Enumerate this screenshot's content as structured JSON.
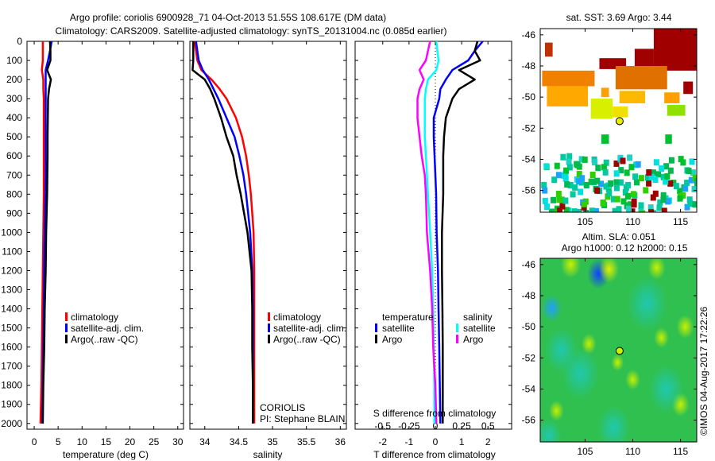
{
  "title": {
    "line1": "Argo profile: coriolis 6900928_71 04-Oct-2013 51.55S 108.617E (DM data)",
    "line2": "Climatology: CARS2009. Satellite-adjusted climatology: synTS_20131004.nc (0.085d earlier)"
  },
  "credit": "©IMOS 04-Aug-2017 17:22:26",
  "colors": {
    "climatology": "#ff0000",
    "satellite": "#0000ff",
    "argo": "#000000",
    "sal_satellite": "#00ffff",
    "sal_argo": "#ff00ff"
  },
  "chart_data": [
    {
      "type": "line",
      "id": "temperature",
      "xlabel": "temperature (deg C)",
      "ylabel": "",
      "xlim": [
        -1.5,
        31.2
      ],
      "ylim": [
        2030,
        0
      ],
      "xticks": [
        "0",
        "5",
        "10",
        "15",
        "20",
        "25",
        "30"
      ],
      "xtick_values": [
        0,
        5,
        10,
        15,
        20,
        25,
        30
      ],
      "yticks": [
        "0",
        "100",
        "200",
        "300",
        "400",
        "500",
        "600",
        "700",
        "800",
        "900",
        "1000",
        "1100",
        "1200",
        "1300",
        "1400",
        "1500",
        "1600",
        "1700",
        "1800",
        "1900",
        "2000"
      ],
      "ytick_values": [
        0,
        100,
        200,
        300,
        400,
        500,
        600,
        700,
        800,
        900,
        1000,
        1100,
        1200,
        1300,
        1400,
        1500,
        1600,
        1700,
        1800,
        1900,
        2000
      ],
      "depth": [
        0,
        50,
        100,
        150,
        200,
        250,
        300,
        400,
        500,
        600,
        700,
        800,
        1000,
        1200,
        1400,
        1600,
        1800,
        2000
      ],
      "series": [
        {
          "name": "climatology",
          "color": "#ff0000",
          "values": [
            1.8,
            1.8,
            1.8,
            1.6,
            1.9,
            1.9,
            2.0,
            2.0,
            2.0,
            2.0,
            2.0,
            2.0,
            1.9,
            1.8,
            1.7,
            1.6,
            1.5,
            1.3
          ]
        },
        {
          "name": "satellite-adj. clim.",
          "color": "#0000ff",
          "values": [
            3.65,
            3.3,
            2.9,
            2.4,
            2.4,
            2.4,
            2.4,
            2.4,
            2.4,
            2.4,
            2.4,
            2.35,
            2.2,
            2.1,
            2.0,
            1.9,
            1.8,
            1.7
          ]
        },
        {
          "name": "Argo(..raw -QC)",
          "color": "#000000",
          "values": [
            3.3,
            3.4,
            3.4,
            2.7,
            3.5,
            3.1,
            2.9,
            2.85,
            2.8,
            2.8,
            2.75,
            2.7,
            2.5,
            2.4,
            2.2,
            2.1,
            1.9,
            1.8
          ]
        }
      ],
      "legend": [
        "climatology",
        "satellite-adj. clim.",
        "Argo(..raw -QC)"
      ]
    },
    {
      "type": "line",
      "id": "salinity",
      "xlabel": "salinity",
      "xlim": [
        33.78,
        36.09
      ],
      "ylim": [
        2030,
        0
      ],
      "xticks": [
        "34",
        "34.5",
        "35",
        "35.5",
        "36"
      ],
      "xtick_values": [
        34,
        34.5,
        35,
        35.5,
        36
      ],
      "depth": [
        0,
        50,
        100,
        150,
        200,
        250,
        300,
        400,
        500,
        600,
        700,
        800,
        1000,
        1200,
        1400,
        1600,
        1800,
        2000
      ],
      "series": [
        {
          "name": "climatology",
          "color": "#ff0000",
          "values": [
            33.85,
            33.87,
            33.89,
            33.95,
            34.1,
            34.22,
            34.32,
            34.46,
            34.55,
            34.61,
            34.65,
            34.68,
            34.72,
            34.73,
            34.73,
            34.73,
            34.73,
            34.73
          ]
        },
        {
          "name": "satellite-adj. clim.",
          "color": "#0000ff",
          "values": [
            33.87,
            33.89,
            33.91,
            33.97,
            34.06,
            34.13,
            34.2,
            34.32,
            34.44,
            34.51,
            34.57,
            34.61,
            34.67,
            34.7,
            34.71,
            34.71,
            34.71,
            34.71
          ]
        },
        {
          "name": "Argo(..raw -QC)",
          "color": "#000000",
          "values": [
            33.83,
            33.83,
            33.83,
            33.82,
            34.0,
            34.08,
            34.14,
            34.24,
            34.32,
            34.42,
            34.47,
            34.53,
            34.63,
            34.69,
            34.7,
            34.7,
            34.71,
            34.71
          ]
        }
      ],
      "legend": [
        "climatology",
        "satellite-adj. clim.",
        "Argo(..raw -QC)"
      ],
      "annotation": [
        "CORIOLIS",
        "PI: Stephane BLAIN"
      ]
    },
    {
      "type": "line",
      "id": "difference",
      "xlabel": "T difference from climatology",
      "x2label": "S difference from climatology",
      "xlim": [
        -3.05,
        2.9
      ],
      "x2lim": [
        -0.7625,
        0.725
      ],
      "ylim": [
        2030,
        0
      ],
      "xticks": [
        "-2",
        "-1",
        "0",
        "1",
        "2"
      ],
      "xtick_values": [
        -2,
        -1,
        0,
        1,
        2
      ],
      "x2ticks": [
        "-0.5",
        "-0.25",
        "0",
        "0.25",
        "0.5"
      ],
      "x2tick_values": [
        -0.5,
        -0.25,
        0,
        0.25,
        0.5
      ],
      "depth": [
        0,
        50,
        100,
        150,
        200,
        250,
        300,
        400,
        500,
        600,
        700,
        800,
        1000,
        1200,
        1400,
        1600,
        1800,
        2000
      ],
      "series": [
        {
          "name": "satellite",
          "group": "temperature",
          "axis": "T",
          "color": "#0000ff",
          "values": [
            1.8,
            1.5,
            1.25,
            0.65,
            0.4,
            0.19,
            0.15,
            -0.06,
            -0.06,
            -0.03,
            0,
            0.03,
            0.05,
            0.1,
            0.12,
            0.15,
            0.17,
            0.19
          ]
        },
        {
          "name": "Argo",
          "group": "temperature",
          "axis": "T",
          "color": "#000000",
          "values": [
            1.6,
            1.5,
            1.7,
            0.9,
            1.5,
            0.9,
            0.65,
            0.4,
            0.33,
            0.3,
            0.3,
            0.3,
            0.25,
            0.25,
            0.27,
            0.28,
            0.28,
            0.28
          ]
        },
        {
          "name": "satellite",
          "group": "salinity",
          "axis": "S",
          "color": "#00ffff",
          "values": [
            0.01,
            0.02,
            0.03,
            0.01,
            -0.07,
            -0.09,
            -0.1,
            -0.1,
            -0.1,
            -0.09,
            -0.08,
            -0.07,
            -0.05,
            -0.03,
            -0.02,
            -0.015,
            -0.01,
            -0.01
          ]
        },
        {
          "name": "Argo",
          "group": "salinity",
          "axis": "S",
          "color": "#ff00ff",
          "values": [
            -0.05,
            -0.07,
            -0.09,
            -0.15,
            -0.11,
            -0.15,
            -0.17,
            -0.17,
            -0.15,
            -0.13,
            -0.1,
            -0.09,
            -0.08,
            -0.05,
            -0.03,
            -0.02,
            0,
            0.01
          ]
        }
      ],
      "legend_headers": [
        "temperature",
        "salinity"
      ],
      "legend": [
        "satellite",
        "Argo",
        "satellite",
        "Argo"
      ]
    },
    {
      "type": "heatmap",
      "id": "sst_map",
      "title": "sat. SST: 3.69 Argo: 3.44",
      "xlim": [
        100.3,
        116.7
      ],
      "ylim": [
        -57.4,
        -45.6
      ],
      "xticks": [
        "105",
        "110",
        "115"
      ],
      "xtick_values": [
        105,
        110,
        115
      ],
      "yticks": [
        "-46",
        "-48",
        "-50",
        "-52",
        "-54",
        "-56"
      ],
      "ytick_values": [
        -46,
        -48,
        -50,
        -52,
        -54,
        -56
      ],
      "float_position": {
        "lon": 108.617,
        "lat": -51.55,
        "color": "#e8f000"
      },
      "patches": [
        {
          "lon": [
            112.2,
            116.7
          ],
          "lat": [
            -45.6,
            -48.3
          ],
          "color": "#a00000"
        },
        {
          "lon": [
            110.2,
            112.2
          ],
          "lat": [
            -46.9,
            -48.1
          ],
          "color": "#a00000"
        },
        {
          "lon": [
            106.5,
            109.3
          ],
          "lat": [
            -47.5,
            -48.2
          ],
          "color": "#a00000"
        },
        {
          "lon": [
            115.3,
            116.3
          ],
          "lat": [
            -49.0,
            -49.8
          ],
          "color": "#a00000"
        },
        {
          "lon": [
            100.8,
            101.6
          ],
          "lat": [
            -46.5,
            -47.4
          ],
          "color": "#c03000"
        },
        {
          "lon": [
            100.5,
            106.0
          ],
          "lat": [
            -48.3,
            -49.3
          ],
          "color": "#f08000"
        },
        {
          "lon": [
            101.0,
            105.3
          ],
          "lat": [
            -49.3,
            -50.6
          ],
          "color": "#ffa800"
        },
        {
          "lon": [
            108.2,
            113.6
          ],
          "lat": [
            -48.0,
            -49.5
          ],
          "color": "#e07000"
        },
        {
          "lon": [
            108.6,
            111.3
          ],
          "lat": [
            -49.6,
            -50.4
          ],
          "color": "#ffb800"
        },
        {
          "lon": [
            113.3,
            114.9
          ],
          "lat": [
            -49.7,
            -50.4
          ],
          "color": "#ffa000"
        },
        {
          "lon": [
            106.7,
            107.5
          ],
          "lat": [
            -49.4,
            -50.0
          ],
          "color": "#ffa000"
        },
        {
          "lon": [
            105.6,
            107.9
          ],
          "lat": [
            -50.1,
            -51.4
          ],
          "color": "#d8f000"
        },
        {
          "lon": [
            107.9,
            109.5
          ],
          "lat": [
            -50.6,
            -51.3
          ],
          "color": "#f0e000"
        },
        {
          "lon": [
            113.6,
            115.5
          ],
          "lat": [
            -50.5,
            -51.2
          ],
          "color": "#90e000"
        },
        {
          "lon": [
            106.7,
            107.5
          ],
          "lat": [
            -52.4,
            -53.0
          ],
          "color": "#00c030"
        },
        {
          "lon": [
            113.4,
            114.1
          ],
          "lat": [
            -52.4,
            -53.0
          ],
          "color": "#00c030"
        }
      ]
    },
    {
      "type": "heatmap",
      "id": "sla_map",
      "title": "Altim. SLA: 0.051",
      "subtitle": "Argo h1000: 0.12 h2000: 0.15",
      "xlim": [
        100.3,
        116.7
      ],
      "ylim": [
        -57.4,
        -45.6
      ],
      "xticks": [
        "105",
        "110",
        "115"
      ],
      "xtick_values": [
        105,
        110,
        115
      ],
      "yticks": [
        "-46",
        "-48",
        "-50",
        "-52",
        "-54",
        "-56"
      ],
      "ytick_values": [
        -46,
        -48,
        -50,
        -52,
        -54,
        -56
      ],
      "float_position": {
        "lon": 108.617,
        "lat": -51.55,
        "color": "#c8f000"
      },
      "blobs": [
        {
          "lon": 106.4,
          "lat": -46.6,
          "r": 0.9,
          "color": "#1040ff"
        },
        {
          "lon": 101.5,
          "lat": -48.8,
          "r": 0.8,
          "color": "#20a0ff"
        },
        {
          "lon": 107.5,
          "lat": -46.3,
          "r": 0.8,
          "color": "#e0f000"
        },
        {
          "lon": 103.5,
          "lat": -46.0,
          "r": 0.8,
          "color": "#c8f000"
        },
        {
          "lon": 112.5,
          "lat": -46.2,
          "r": 0.7,
          "color": "#c8f000"
        },
        {
          "lon": 115.5,
          "lat": -50.0,
          "r": 0.7,
          "color": "#c8f000"
        },
        {
          "lon": 113.0,
          "lat": -50.7,
          "r": 0.6,
          "color": "#c8f000"
        },
        {
          "lon": 105.4,
          "lat": -51.1,
          "r": 0.6,
          "color": "#c8f000"
        },
        {
          "lon": 108.4,
          "lat": -52.3,
          "r": 0.5,
          "color": "#c8f000"
        },
        {
          "lon": 115.0,
          "lat": -55.0,
          "r": 0.7,
          "color": "#c8f000"
        },
        {
          "lon": 102.0,
          "lat": -55.4,
          "r": 0.6,
          "color": "#c8f000"
        },
        {
          "lon": 110.0,
          "lat": -53.4,
          "r": 0.6,
          "color": "#c8f000"
        },
        {
          "lon": 104.5,
          "lat": -53.0,
          "r": 1.5,
          "color": "#20c8b0"
        },
        {
          "lon": 111.5,
          "lat": -48.5,
          "r": 1.6,
          "color": "#20c8b0"
        },
        {
          "lon": 102.5,
          "lat": -51.5,
          "r": 1.3,
          "color": "#20c8b0"
        },
        {
          "lon": 113.5,
          "lat": -54.0,
          "r": 1.4,
          "color": "#20c8b0"
        },
        {
          "lon": 108.0,
          "lat": -56.5,
          "r": 1.3,
          "color": "#20c8b0"
        },
        {
          "lon": 101.2,
          "lat": -57.0,
          "r": 1.0,
          "color": "#20c8b0"
        }
      ]
    }
  ]
}
